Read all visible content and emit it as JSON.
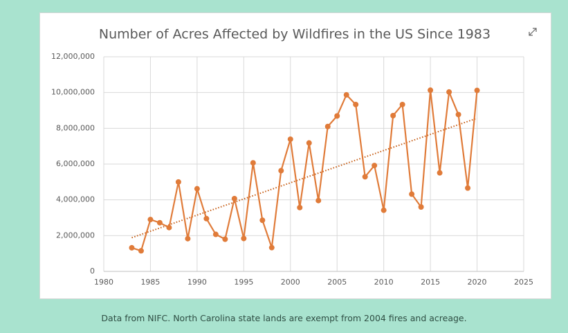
{
  "chart_data": {
    "type": "line",
    "title": "Number of Acres Affected by Wildfires in the US Since 1983",
    "x": [
      1983,
      1984,
      1985,
      1986,
      1987,
      1988,
      1989,
      1990,
      1991,
      1992,
      1993,
      1994,
      1995,
      1996,
      1997,
      1998,
      1999,
      2000,
      2001,
      2002,
      2003,
      2004,
      2005,
      2006,
      2007,
      2008,
      2009,
      2010,
      2011,
      2012,
      2013,
      2014,
      2015,
      2016,
      2017,
      2018,
      2019,
      2020
    ],
    "values": [
      1320000,
      1150000,
      2900000,
      2720000,
      2450000,
      5000000,
      1830000,
      4620000,
      2950000,
      2070000,
      1800000,
      4070000,
      1840000,
      6070000,
      2860000,
      1330000,
      5630000,
      7390000,
      3570000,
      7180000,
      3960000,
      8100000,
      8690000,
      9870000,
      9330000,
      5290000,
      5920000,
      3420000,
      8710000,
      9330000,
      4320000,
      3600000,
      10130000,
      5510000,
      10030000,
      8770000,
      4660000,
      10120000
    ],
    "color": "#e07b39",
    "trendline": "linear",
    "trendline_color": "#c55a11",
    "xlim": [
      1980,
      2025
    ],
    "xticks": [
      1980,
      1985,
      1990,
      1995,
      2000,
      2005,
      2010,
      2015,
      2020,
      2025
    ],
    "ylim": [
      0,
      12000000
    ],
    "yticks": [
      0,
      {
        "value": 2000000,
        "label": "2,000,000"
      },
      {
        "value": 4000000,
        "label": "4,000,000"
      },
      {
        "value": 6000000,
        "label": "6,000,000"
      },
      {
        "value": 8000000,
        "label": "8,000,000"
      },
      {
        "value": 10000000,
        "label": "10,000,000"
      },
      {
        "value": 12000000,
        "label": "12,000,000"
      }
    ],
    "grid": true
  },
  "caption": "Data from NIFC. North Carolina state lands are exempt from 2004 fires and acreage."
}
